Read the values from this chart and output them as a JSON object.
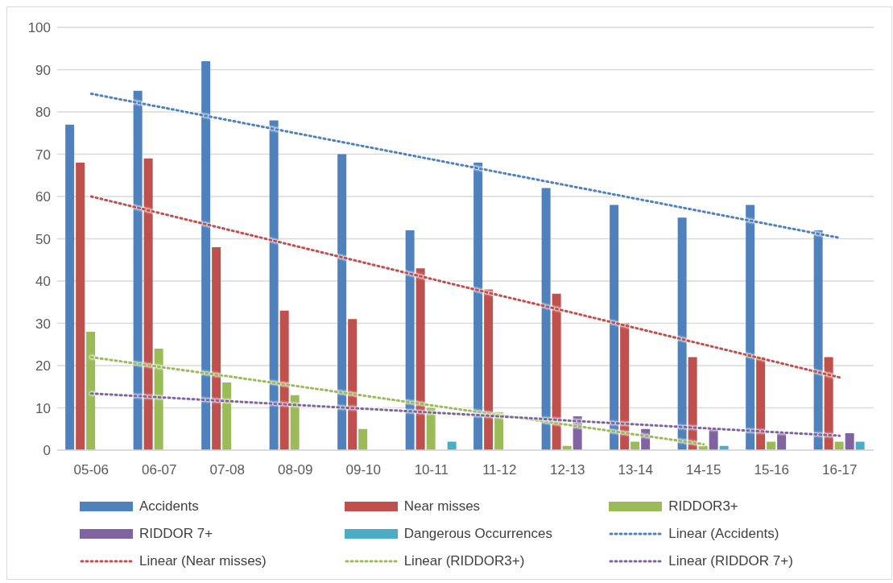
{
  "chart_data": {
    "type": "bar",
    "categories": [
      "05-06",
      "06-07",
      "07-08",
      "08-09",
      "09-10",
      "10-11",
      "11-12",
      "12-13",
      "13-14",
      "14-15",
      "15-16",
      "16-17"
    ],
    "series": [
      {
        "name": "Accidents",
        "color": "#4f81bd",
        "values": [
          77,
          85,
          92,
          78,
          70,
          52,
          68,
          62,
          58,
          55,
          58,
          52
        ]
      },
      {
        "name": "Near misses",
        "color": "#c0504d",
        "values": [
          68,
          69,
          48,
          33,
          31,
          43,
          38,
          37,
          30,
          22,
          22,
          22
        ]
      },
      {
        "name": "RIDDOR3+",
        "color": "#9bbb59",
        "values": [
          28,
          24,
          16,
          13,
          5,
          10,
          9,
          1,
          2,
          1,
          2,
          2
        ]
      },
      {
        "name": "RIDDOR 7+",
        "color": "#8064a2",
        "values": [
          null,
          null,
          null,
          null,
          null,
          null,
          null,
          8,
          5,
          5,
          4,
          4
        ]
      },
      {
        "name": "Dangerous Occurrences",
        "color": "#4bacc6",
        "values": [
          null,
          null,
          null,
          null,
          null,
          2,
          null,
          null,
          null,
          1,
          null,
          2
        ]
      },
      {
        "name": "Linear (Accidents)",
        "type": "line",
        "line_style": "dotted",
        "color": "#4f81bd",
        "values": [
          84.3,
          81.2,
          78.1,
          75.0,
          71.9,
          68.8,
          65.7,
          62.6,
          59.5,
          56.4,
          53.3,
          50.2
        ]
      },
      {
        "name": "Linear (Near misses)",
        "type": "line",
        "line_style": "dotted",
        "color": "#c0504d",
        "values": [
          60.0,
          56.1,
          52.2,
          48.3,
          44.4,
          40.5,
          36.6,
          32.8,
          28.9,
          25.0,
          21.1,
          17.2
        ]
      },
      {
        "name": "Linear (RIDDOR3+)",
        "type": "line",
        "line_style": "dotted",
        "color": "#9bbb59",
        "values": [
          22.0,
          19.7,
          17.5,
          15.2,
          12.9,
          10.6,
          8.3,
          6.0,
          3.7,
          1.4,
          null,
          null
        ]
      },
      {
        "name": "Linear (RIDDOR 7+)",
        "type": "line",
        "line_style": "dotted",
        "color": "#8064a2",
        "values": [
          13.4,
          12.5,
          11.6,
          10.7,
          9.8,
          8.9,
          8.0,
          7.0,
          6.1,
          5.2,
          4.3,
          3.4
        ]
      }
    ],
    "ylim": [
      0,
      100
    ],
    "yticks": [
      0,
      10,
      20,
      30,
      40,
      50,
      60,
      70,
      80,
      90,
      100
    ],
    "grid": "y",
    "legend": "bottom",
    "marker": "none"
  }
}
